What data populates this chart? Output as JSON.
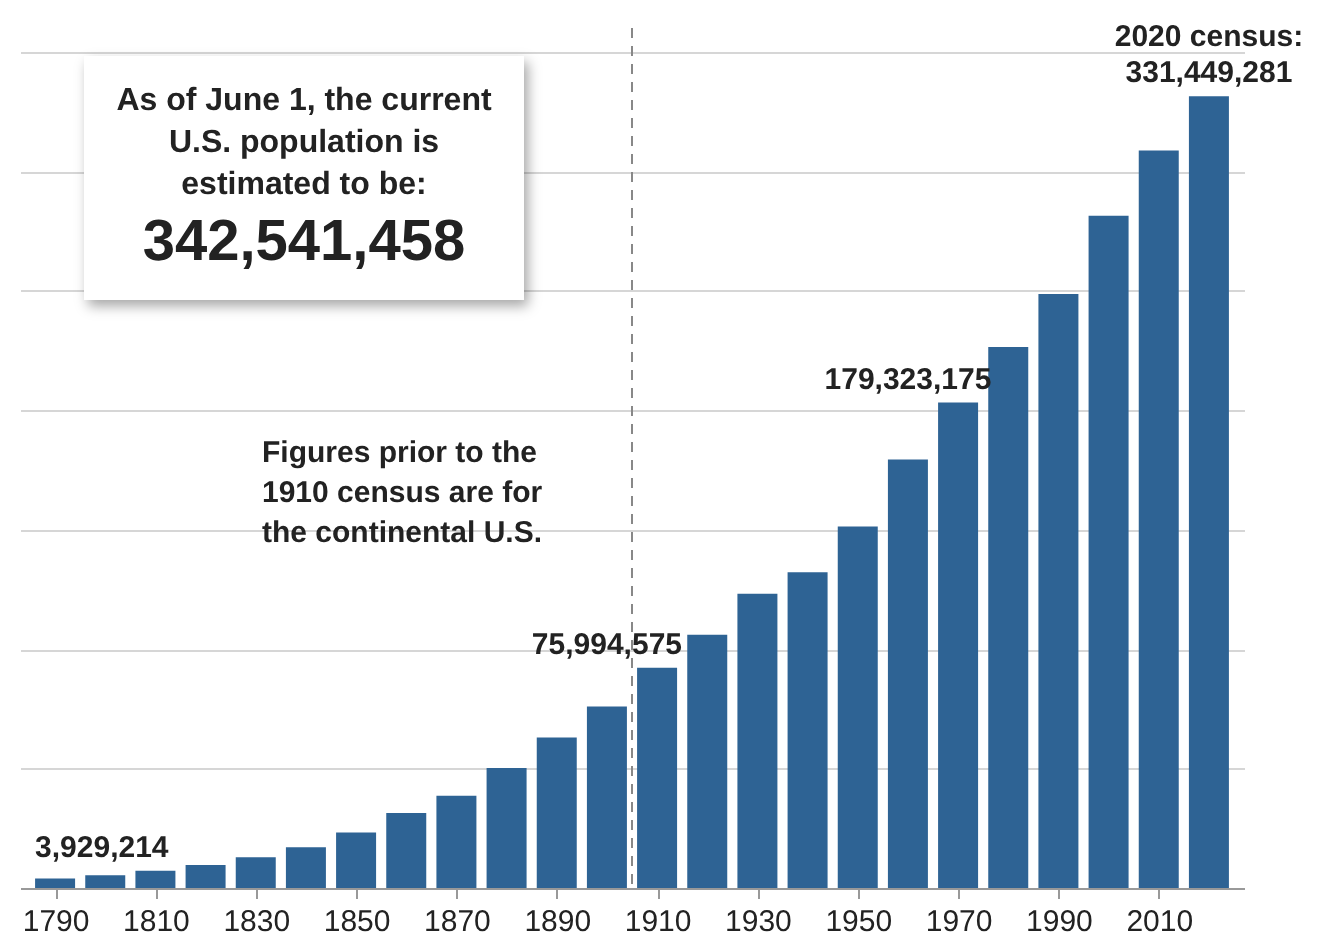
{
  "chart_data": {
    "type": "bar",
    "x": [
      1790,
      1800,
      1810,
      1820,
      1830,
      1840,
      1850,
      1860,
      1870,
      1880,
      1890,
      1900,
      1910,
      1920,
      1930,
      1940,
      1950,
      1960,
      1970,
      1980,
      1990,
      2000,
      2010,
      2020
    ],
    "values": [
      3929214,
      5300000,
      7200000,
      9600000,
      12900000,
      17100000,
      23200000,
      31400000,
      38600000,
      50200000,
      63000000,
      75994575,
      92200000,
      106000000,
      123200000,
      132200000,
      151300000,
      179323175,
      203200000,
      226500000,
      248700000,
      281400000,
      308700000,
      331449281
    ],
    "value_labels": [
      "3,929,214",
      null,
      null,
      null,
      null,
      null,
      null,
      null,
      null,
      null,
      null,
      "75,994,575",
      null,
      null,
      null,
      null,
      null,
      "179,323,175",
      null,
      null,
      null,
      null,
      null,
      "331,449,281"
    ],
    "color": "#2e6394",
    "xlim": [
      1785,
      2025
    ],
    "xticks": [
      1790,
      1810,
      1830,
      1850,
      1870,
      1890,
      1910,
      1930,
      1950,
      1970,
      1990,
      2010
    ],
    "ylim": [
      0,
      360000000
    ],
    "yticks": [
      {
        "value": 0,
        "label": null
      },
      {
        "value": 50000000,
        "label": null
      },
      {
        "value": 100000000,
        "label": null
      },
      {
        "value": 150000000,
        "label": null
      },
      {
        "value": 200000000,
        "label": null
      },
      {
        "value": 250000000,
        "label": null
      },
      {
        "value": 300000000,
        "label": null
      },
      {
        "value": 350000000,
        "label": null
      }
    ],
    "tick_labels": "x",
    "grid": "y",
    "ref_lines": [
      {
        "axis": "x",
        "value": 1905,
        "label": "Figures prior to the 1910 census are for the continental U.S.",
        "line_style": "dashed",
        "color": "#888888"
      }
    ],
    "annotations": [
      "As of June 1, the current U.S. population is estimated to be:",
      "342,541,458",
      {
        "text": "2020 census:",
        "x": 2020,
        "y": 331449281
      }
    ]
  }
}
